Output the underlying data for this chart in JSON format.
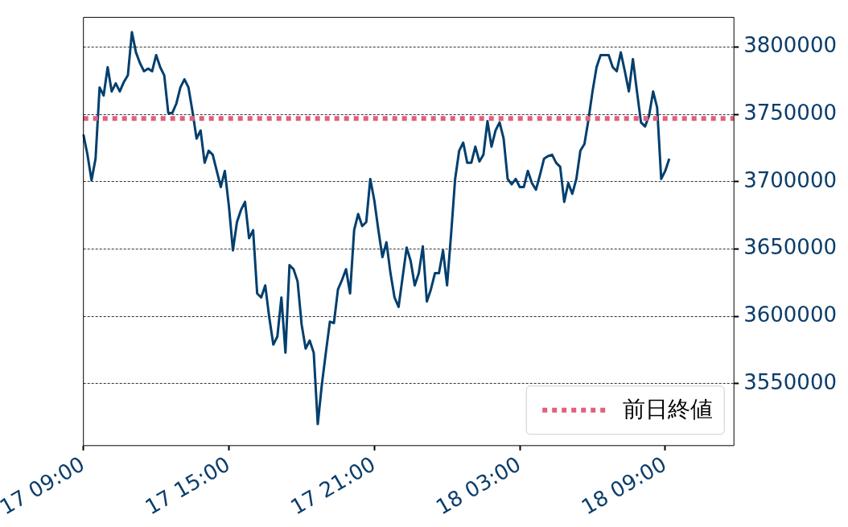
{
  "chart_data": {
    "type": "line",
    "categories": [
      "17 09:00",
      null,
      null,
      null,
      null,
      null,
      null,
      null,
      null,
      null,
      null,
      null,
      null,
      null,
      null,
      null,
      null,
      null,
      null,
      null,
      null,
      null,
      null,
      null,
      null,
      null,
      null,
      null,
      null,
      null,
      null,
      null,
      null,
      null,
      null,
      null,
      "17 15:00",
      null,
      null,
      null,
      null,
      null,
      null,
      null,
      null,
      null,
      null,
      null,
      null,
      null,
      null,
      null,
      null,
      null,
      null,
      null,
      null,
      null,
      null,
      null,
      null,
      null,
      null,
      null,
      null,
      null,
      null,
      null,
      null,
      null,
      null,
      null,
      "17 21:00",
      null,
      null,
      null,
      null,
      null,
      null,
      null,
      null,
      null,
      null,
      null,
      null,
      null,
      null,
      null,
      null,
      null,
      null,
      null,
      null,
      null,
      null,
      null,
      null,
      null,
      null,
      null,
      null,
      null,
      null,
      null,
      null,
      null,
      null,
      null,
      "18 03:00",
      null,
      null,
      null,
      null,
      null,
      null,
      null,
      null,
      null,
      null,
      null,
      null,
      null,
      null,
      null,
      null,
      null,
      null,
      null,
      null,
      null,
      null,
      null,
      null,
      null,
      null,
      null,
      null,
      null,
      null,
      null,
      null,
      null,
      null,
      null,
      "18 09:00",
      null,
      null,
      null,
      null,
      null,
      null,
      null,
      null,
      null,
      null,
      null,
      null,
      null,
      null,
      null,
      null,
      null
    ],
    "series": [
      {
        "color": "#003f6e",
        "values": [
          3735000,
          3720000,
          3701000,
          3717000,
          3770000,
          3764000,
          3785000,
          3767000,
          3773000,
          3767000,
          3774000,
          3779000,
          3811000,
          3796000,
          3788000,
          3782000,
          3784000,
          3782000,
          3794000,
          3785000,
          3779000,
          3751000,
          3751000,
          3758000,
          3770000,
          3776000,
          3770000,
          3752000,
          3732000,
          3738000,
          3714000,
          3723000,
          3720000,
          3708000,
          3696000,
          3708000,
          3682000,
          3649000,
          3670000,
          3679000,
          3685000,
          3658000,
          3664000,
          3617000,
          3614000,
          3623000,
          3599000,
          3579000,
          3585000,
          3614000,
          3573000,
          3638000,
          3635000,
          3626000,
          3594000,
          3576000,
          3582000,
          3573000,
          3520000,
          3549000,
          3573000,
          3596000,
          3595000,
          3620000,
          3627000,
          3635000,
          3617000,
          3664000,
          3676000,
          3667000,
          3670000,
          3702000,
          3686000,
          3664000,
          3644000,
          3655000,
          3632000,
          3614000,
          3607000,
          3629000,
          3651000,
          3641000,
          3623000,
          3632000,
          3652000,
          3611000,
          3620000,
          3632000,
          3632000,
          3649000,
          3623000,
          3661000,
          3702000,
          3723000,
          3729000,
          3714000,
          3714000,
          3726000,
          3715000,
          3720000,
          3745000,
          3726000,
          3738000,
          3744000,
          3732000,
          3702000,
          3698000,
          3702000,
          3696000,
          3696000,
          3708000,
          3699000,
          3694000,
          3705000,
          3717000,
          3719000,
          3720000,
          3714000,
          3711000,
          3685000,
          3699000,
          3691000,
          3702000,
          3723000,
          3728000,
          3746000,
          3767000,
          3785000,
          3794000,
          3794000,
          3794000,
          3785000,
          3782000,
          3796000,
          3782000,
          3767000,
          3791000,
          3767000,
          3744000,
          3741000,
          3749000,
          3767000,
          3755000,
          3702000,
          3708000,
          3717000,
          null,
          null,
          null,
          null,
          null,
          null,
          null,
          null,
          null,
          null,
          null,
          null,
          null,
          null,
          null,
          null
        ]
      }
    ],
    "ylim": [
      3504000,
      3822000
    ],
    "yticks": [
      3550000,
      3600000,
      3650000,
      3700000,
      3750000,
      3800000
    ],
    "grid": "y",
    "marker": "none",
    "legend": "bottom right",
    "ref_lines": [
      {
        "axis": "y",
        "value": 3747000,
        "label": "前日終値",
        "color": "#e0607e",
        "line_style": "dotted"
      }
    ]
  }
}
